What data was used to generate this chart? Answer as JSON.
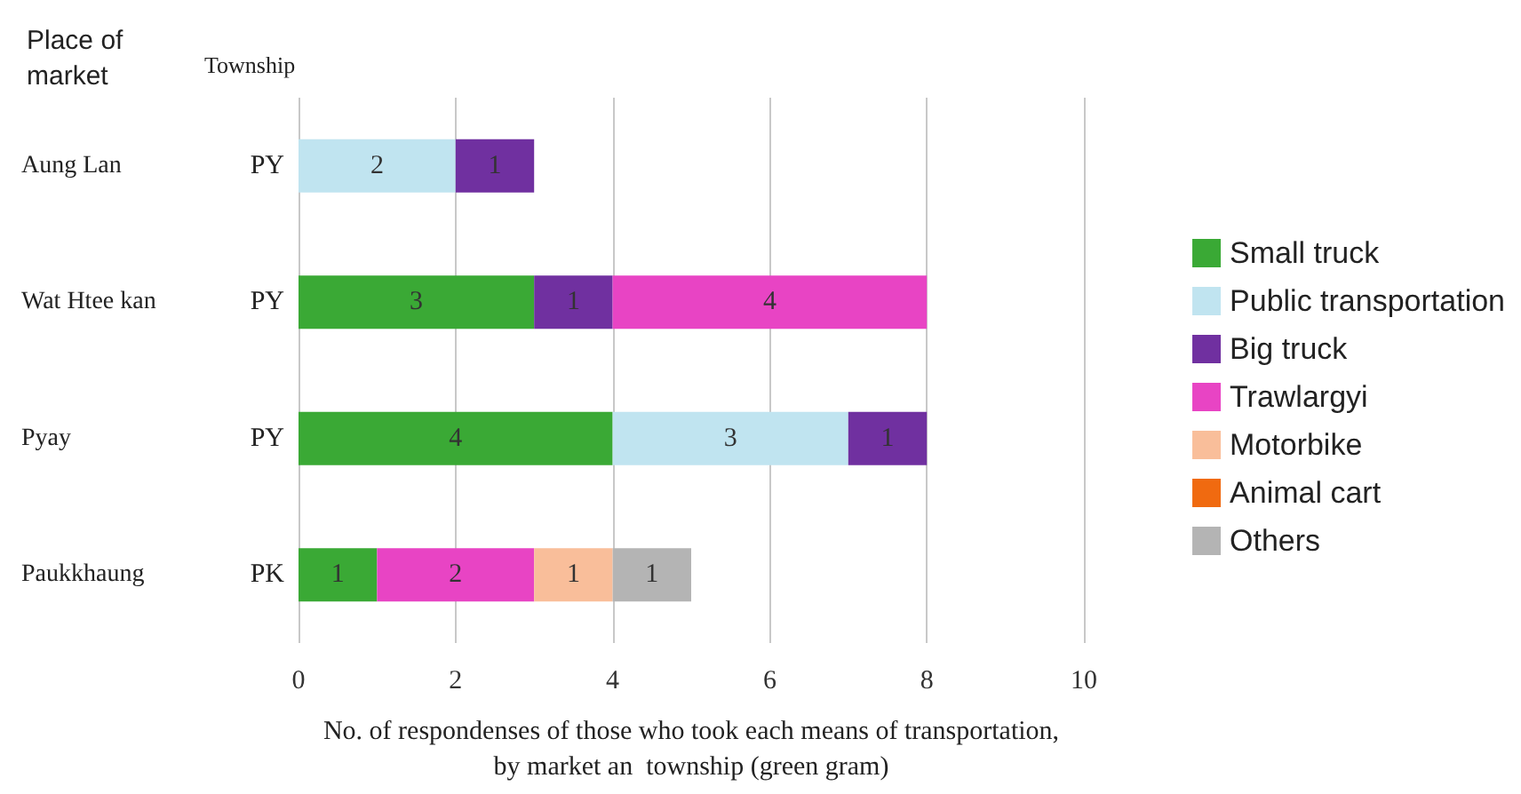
{
  "chart_data": {
    "type": "bar",
    "orientation": "horizontal",
    "stacked": true,
    "categories": [
      "Aung Lan",
      "Wat Htee kan",
      "Pyay",
      "Paukkhaung"
    ],
    "y2_categories": [
      "PY",
      "PY",
      "PY",
      "PK"
    ],
    "ylabel": "Place of\nmarket",
    "y2label": "Township",
    "xlabel": "No. of respondenses of those who took each means of transportation,\nby market an  township (green gram)",
    "series": [
      {
        "name": "Small truck",
        "color": "#3aa935",
        "values": [
          null,
          3,
          4,
          1
        ]
      },
      {
        "name": "Public transportation",
        "color": "#c0e4f0",
        "values": [
          2,
          null,
          3,
          null
        ]
      },
      {
        "name": "Big truck",
        "color": "#7030a0",
        "values": [
          1,
          1,
          1,
          null
        ]
      },
      {
        "name": "Trawlargyi",
        "color": "#e844c4",
        "values": [
          null,
          4,
          null,
          2
        ]
      },
      {
        "name": "Motorbike",
        "color": "#f9be9a",
        "values": [
          null,
          null,
          null,
          1
        ]
      },
      {
        "name": "Animal cart",
        "color": "#f06a10",
        "values": [
          null,
          null,
          null,
          null
        ]
      },
      {
        "name": "Others",
        "color": "#b4b4b4",
        "values": [
          null,
          null,
          null,
          1
        ]
      }
    ],
    "xlim": [
      0,
      10
    ],
    "xticks": [
      0,
      2,
      4,
      6,
      8,
      10
    ],
    "grid": "x",
    "data_labels": true,
    "legend": "right"
  }
}
